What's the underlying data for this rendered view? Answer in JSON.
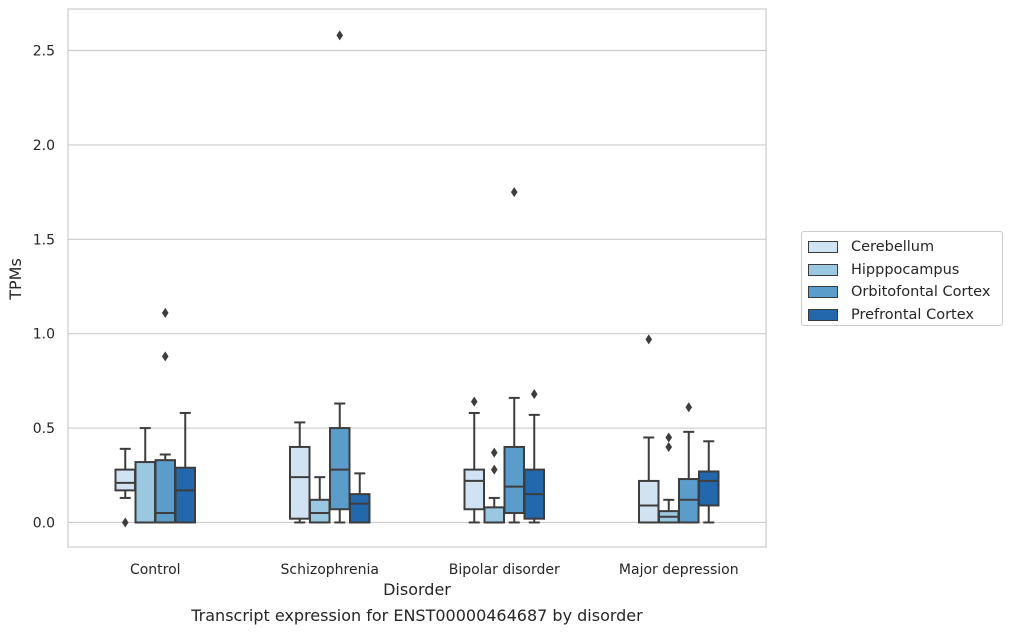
{
  "chart_data": {
    "type": "box",
    "xlabel": "Disorder",
    "ylabel": "TPMs",
    "caption": "Transcript expression for ENST00000464687 by disorder",
    "ylim": [
      -0.13,
      2.72
    ],
    "yticks": [
      0.0,
      0.5,
      1.0,
      1.5,
      2.0,
      2.5
    ],
    "ytick_labels": [
      "0.0",
      "0.5",
      "1.0",
      "1.5",
      "2.0",
      "2.5"
    ],
    "grid": "horizontal",
    "legend_position": "right",
    "categories": [
      "Control",
      "Schizophrenia",
      "Bipolar disorder",
      "Major depression"
    ],
    "series": [
      {
        "name": "Cerebellum",
        "color": "#d1e2f3",
        "boxes": [
          {
            "whislo": 0.13,
            "q1": 0.17,
            "med": 0.21,
            "q3": 0.28,
            "whishi": 0.39,
            "fliers": [
              0.0
            ]
          },
          {
            "whislo": 0.0,
            "q1": 0.02,
            "med": 0.24,
            "q3": 0.4,
            "whishi": 0.53,
            "fliers": []
          },
          {
            "whislo": 0.0,
            "q1": 0.07,
            "med": 0.22,
            "q3": 0.28,
            "whishi": 0.58,
            "fliers": [
              0.64
            ]
          },
          {
            "whislo": 0.0,
            "q1": 0.0,
            "med": 0.09,
            "q3": 0.22,
            "whishi": 0.45,
            "fliers": [
              0.97
            ]
          }
        ]
      },
      {
        "name": "Hipppocampus",
        "color": "#9ac8e0",
        "boxes": [
          {
            "whislo": 0.0,
            "q1": 0.0,
            "med": 0.0,
            "q3": 0.32,
            "whishi": 0.5,
            "fliers": []
          },
          {
            "whislo": 0.0,
            "q1": 0.0,
            "med": 0.05,
            "q3": 0.12,
            "whishi": 0.24,
            "fliers": []
          },
          {
            "whislo": 0.0,
            "q1": 0.0,
            "med": 0.0,
            "q3": 0.08,
            "whishi": 0.13,
            "fliers": [
              0.28,
              0.37
            ]
          },
          {
            "whislo": 0.0,
            "q1": 0.0,
            "med": 0.03,
            "q3": 0.06,
            "whishi": 0.12,
            "fliers": [
              0.4,
              0.45
            ]
          }
        ]
      },
      {
        "name": "Orbitofontal Cortex",
        "color": "#5a9dcb",
        "boxes": [
          {
            "whislo": 0.0,
            "q1": 0.0,
            "med": 0.05,
            "q3": 0.33,
            "whishi": 0.36,
            "fliers": [
              0.88,
              1.11
            ]
          },
          {
            "whislo": 0.0,
            "q1": 0.07,
            "med": 0.28,
            "q3": 0.5,
            "whishi": 0.63,
            "fliers": [
              2.58
            ]
          },
          {
            "whislo": 0.0,
            "q1": 0.05,
            "med": 0.19,
            "q3": 0.4,
            "whishi": 0.66,
            "fliers": [
              1.75
            ]
          },
          {
            "whislo": 0.0,
            "q1": 0.0,
            "med": 0.12,
            "q3": 0.23,
            "whishi": 0.48,
            "fliers": [
              0.61
            ]
          }
        ]
      },
      {
        "name": "Prefrontal Cortex",
        "color": "#2268ad",
        "boxes": [
          {
            "whislo": 0.0,
            "q1": 0.0,
            "med": 0.17,
            "q3": 0.29,
            "whishi": 0.58,
            "fliers": []
          },
          {
            "whislo": 0.0,
            "q1": 0.0,
            "med": 0.1,
            "q3": 0.15,
            "whishi": 0.26,
            "fliers": []
          },
          {
            "whislo": 0.0,
            "q1": 0.02,
            "med": 0.15,
            "q3": 0.28,
            "whishi": 0.57,
            "fliers": [
              0.68
            ]
          },
          {
            "whislo": 0.0,
            "q1": 0.09,
            "med": 0.22,
            "q3": 0.27,
            "whishi": 0.43,
            "fliers": []
          }
        ]
      }
    ]
  }
}
